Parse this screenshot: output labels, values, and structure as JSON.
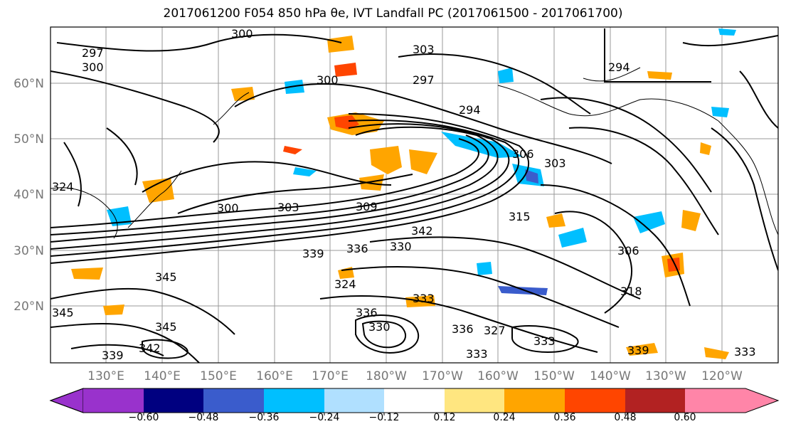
{
  "title": "2017061200 F054 850 hPa θe, IVT Landfall PC (2017061500 - 2017061700)",
  "map": {
    "lat_labels": [
      "20°N",
      "30°N",
      "40°N",
      "50°N",
      "60°N"
    ],
    "lon_labels": [
      "130°E",
      "140°E",
      "150°E",
      "160°E",
      "170°E",
      "180°W",
      "170°W",
      "160°W",
      "150°W",
      "140°W",
      "130°W",
      "120°W"
    ],
    "contour_labels": [
      "297",
      "300",
      "300",
      "300",
      "303",
      "294",
      "297",
      "294",
      "306",
      "303",
      "300",
      "303",
      "309",
      "315",
      "342",
      "330",
      "336",
      "339",
      "306",
      "318",
      "324",
      "327",
      "333",
      "336",
      "345",
      "345",
      "345",
      "342",
      "339",
      "330",
      "333",
      "336",
      "333",
      "339",
      "333",
      "324"
    ],
    "colorbar": {
      "labels": [
        "−0.60",
        "−0.48",
        "−0.36",
        "−0.24",
        "−0.12",
        "0.12",
        "0.24",
        "0.36",
        "0.48",
        "0.60"
      ],
      "colors": [
        "#9932cc",
        "#000080",
        "#3a5ccc",
        "#00bfff",
        "#b0e0ff",
        "#ffffff",
        "#ffe680",
        "#ffa500",
        "#ff4500",
        "#b22222",
        "#ff85a8"
      ]
    }
  }
}
